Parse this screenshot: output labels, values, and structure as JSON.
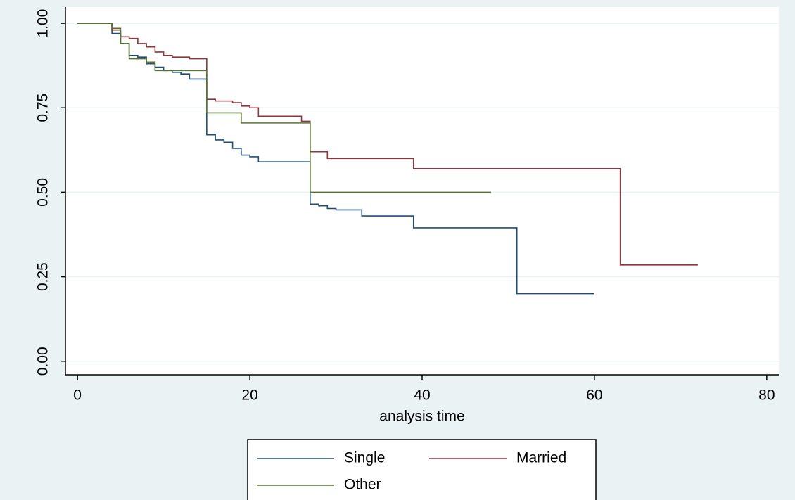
{
  "chart_data": {
    "type": "line",
    "drawstyle": "steps-post",
    "xlabel": "analysis time",
    "xlim": [
      -1.4,
      81.4
    ],
    "ylim": [
      -0.04,
      1.048
    ],
    "xticks": [
      0,
      20,
      40,
      60,
      80
    ],
    "yticks": [
      {
        "value": 0,
        "label": "0.00"
      },
      {
        "value": 0.25,
        "label": "0.25"
      },
      {
        "value": 0.5,
        "label": "0.50"
      },
      {
        "value": 0.75,
        "label": "0.75"
      },
      {
        "value": 1,
        "label": "1.00"
      }
    ],
    "grid": true,
    "legend": "bottom",
    "series": [
      {
        "name": "Single",
        "color": "#1f4e79",
        "x": [
          0,
          4,
          5,
          6,
          7,
          8,
          9,
          10,
          11,
          12,
          13,
          15,
          16,
          17,
          18,
          19,
          20,
          21,
          27,
          28,
          29,
          30,
          33,
          39,
          51,
          60
        ],
        "values": [
          1.0,
          0.97,
          0.94,
          0.905,
          0.9,
          0.88,
          0.87,
          0.86,
          0.855,
          0.85,
          0.835,
          0.67,
          0.655,
          0.648,
          0.63,
          0.61,
          0.605,
          0.59,
          0.465,
          0.46,
          0.452,
          0.448,
          0.43,
          0.395,
          0.2,
          0.2
        ]
      },
      {
        "name": "Married",
        "color": "#90353b",
        "x": [
          0,
          4,
          5,
          6,
          7,
          8,
          9,
          10,
          11,
          13,
          15,
          16,
          18,
          19,
          20,
          21,
          26,
          27,
          29,
          39,
          63,
          72
        ],
        "values": [
          1.0,
          0.98,
          0.96,
          0.955,
          0.94,
          0.93,
          0.915,
          0.905,
          0.9,
          0.895,
          0.775,
          0.77,
          0.765,
          0.755,
          0.75,
          0.725,
          0.71,
          0.62,
          0.6,
          0.57,
          0.285,
          0.285
        ]
      },
      {
        "name": "Other",
        "color": "#55752f",
        "x": [
          0,
          4,
          5,
          6,
          8,
          9,
          15,
          19,
          27,
          48
        ],
        "values": [
          1.0,
          0.985,
          0.94,
          0.895,
          0.885,
          0.86,
          0.735,
          0.705,
          0.5,
          0.5
        ]
      }
    ]
  }
}
